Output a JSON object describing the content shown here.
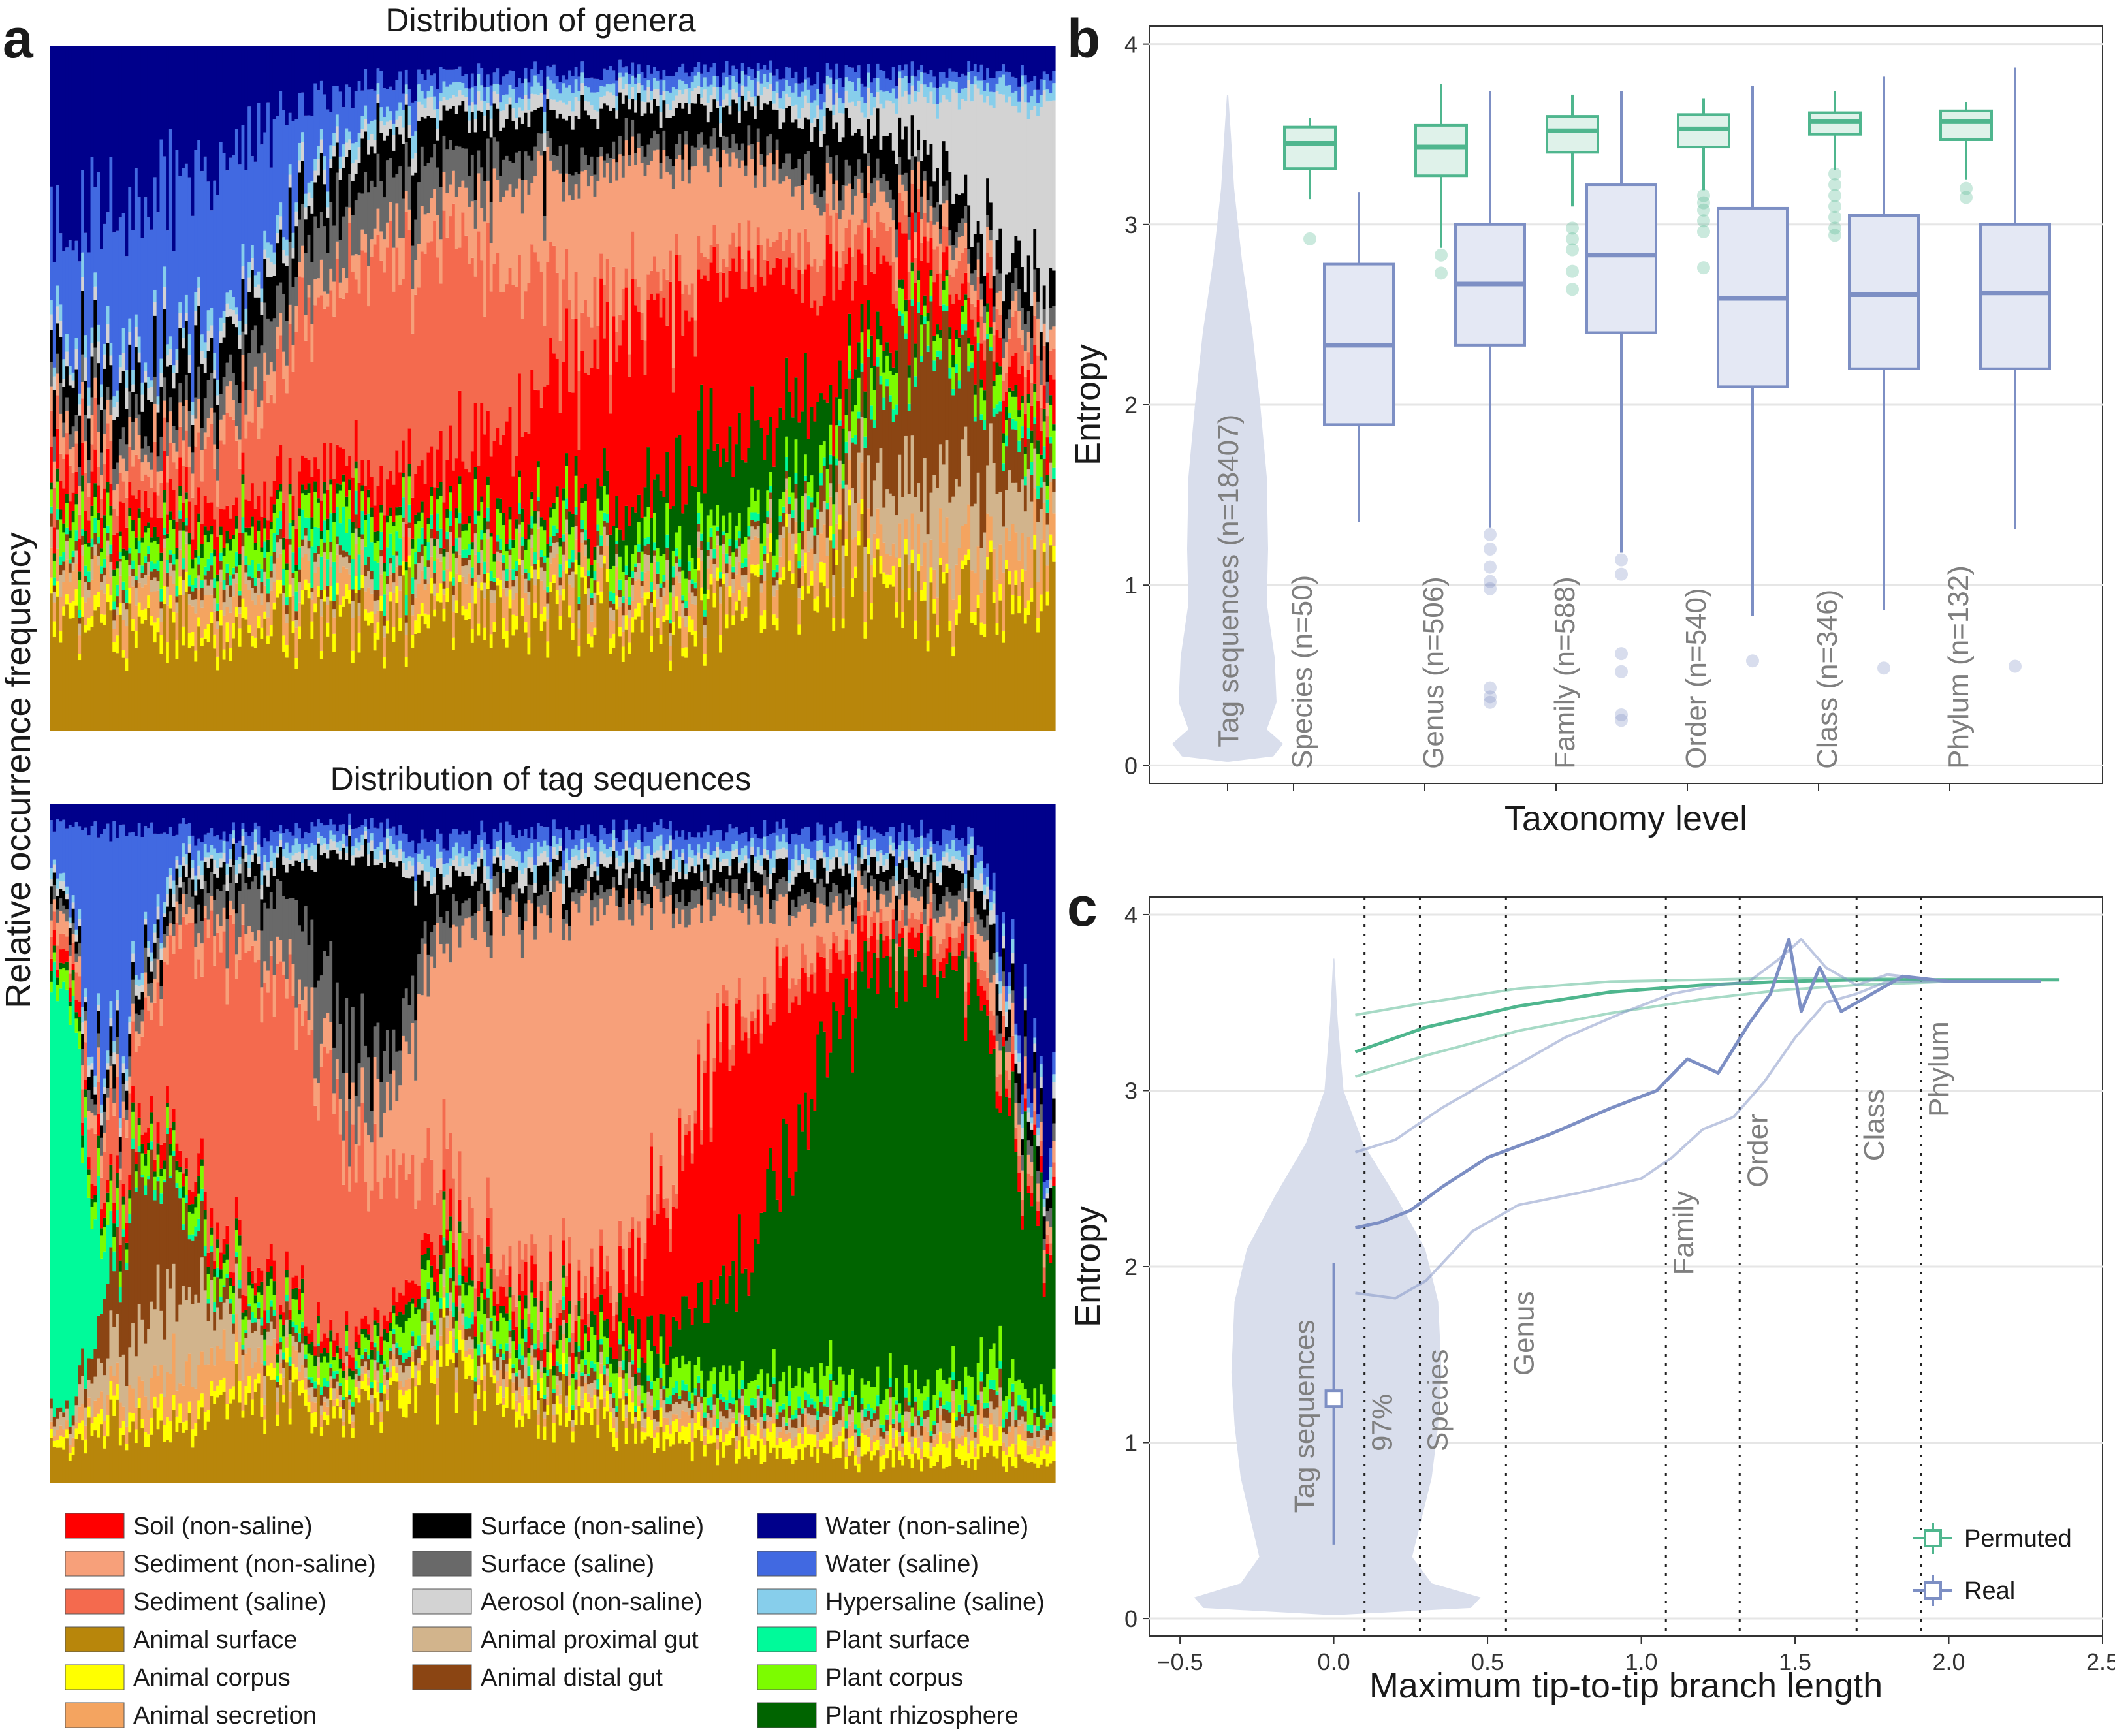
{
  "panel_labels": [
    "a",
    "b",
    "c"
  ],
  "chart_data": [
    {
      "id": "a-top",
      "type": "bar",
      "stacked": true,
      "title": "Distribution of genera",
      "ylabel": "Relative occurrence frequency",
      "description_values": "Each column is one genus; columns sorted; stacked fractions of environment types summing to 1"
    },
    {
      "id": "a-bottom",
      "type": "bar",
      "stacked": true,
      "title": "Distribution of tag sequences",
      "ylabel": "Relative occurrence frequency"
    },
    {
      "id": "b",
      "type": "box",
      "xlabel": "Taxonomy level",
      "ylabel": "Entropy",
      "ylim": [
        -0.1,
        4.1
      ],
      "yticks": [
        0,
        1,
        2,
        3,
        4
      ],
      "violin": {
        "label": "Tag sequences (n=18407)",
        "min": 0.02,
        "max": 3.72
      },
      "groups": [
        {
          "label": "Species (n=50)",
          "permuted": {
            "q1": 3.31,
            "median": 3.45,
            "q3": 3.54,
            "lo": 3.14,
            "hi": 3.59,
            "out": [
              2.92
            ]
          },
          "real": {
            "q1": 1.89,
            "median": 2.33,
            "q3": 2.78,
            "lo": 1.35,
            "hi": 3.18,
            "out": []
          }
        },
        {
          "label": "Genus (n=506)",
          "permuted": {
            "q1": 3.27,
            "median": 3.43,
            "q3": 3.55,
            "lo": 2.87,
            "hi": 3.78,
            "out": [
              2.83,
              2.73
            ]
          },
          "real": {
            "q1": 2.33,
            "median": 2.67,
            "q3": 3.0,
            "lo": 1.32,
            "hi": 3.74,
            "out": [
              1.28,
              1.2,
              1.1,
              1.02,
              0.98,
              0.43,
              0.38,
              0.35
            ]
          }
        },
        {
          "label": "Family (n=588)",
          "permuted": {
            "q1": 3.4,
            "median": 3.52,
            "q3": 3.6,
            "lo": 3.1,
            "hi": 3.72,
            "out": [
              2.98,
              2.92,
              2.86,
              2.74,
              2.64
            ]
          },
          "real": {
            "q1": 2.4,
            "median": 2.83,
            "q3": 3.22,
            "lo": 1.18,
            "hi": 3.74,
            "out": [
              1.14,
              1.06,
              0.62,
              0.52,
              0.28,
              0.25
            ]
          }
        },
        {
          "label": "Order (n=540)",
          "permuted": {
            "q1": 3.43,
            "median": 3.53,
            "q3": 3.61,
            "lo": 3.19,
            "hi": 3.7,
            "out": [
              3.16,
              3.12,
              3.08,
              3.02,
              2.96,
              2.76
            ]
          },
          "real": {
            "q1": 2.1,
            "median": 2.59,
            "q3": 3.09,
            "lo": 0.83,
            "hi": 3.77,
            "out": [
              0.58
            ]
          }
        },
        {
          "label": "Class (n=346)",
          "permuted": {
            "q1": 3.5,
            "median": 3.57,
            "q3": 3.62,
            "lo": 3.3,
            "hi": 3.74,
            "out": [
              3.28,
              3.22,
              3.16,
              3.1,
              3.04,
              2.98,
              2.94
            ]
          },
          "real": {
            "q1": 2.2,
            "median": 2.61,
            "q3": 3.05,
            "lo": 0.86,
            "hi": 3.82,
            "out": [
              0.54
            ]
          }
        },
        {
          "label": "Phylum (n=132)",
          "permuted": {
            "q1": 3.47,
            "median": 3.57,
            "q3": 3.63,
            "lo": 3.25,
            "hi": 3.68,
            "out": [
              3.2,
              3.15
            ]
          },
          "real": {
            "q1": 2.2,
            "median": 2.62,
            "q3": 3.0,
            "lo": 1.31,
            "hi": 3.87,
            "out": [
              0.55
            ]
          }
        }
      ]
    },
    {
      "id": "c",
      "type": "line",
      "xlabel": "Maximum tip-to-tip branch length",
      "ylabel": "Entropy",
      "xlim": [
        -0.6,
        2.5
      ],
      "ylim": [
        -0.1,
        4.1
      ],
      "xticks": [
        -0.5,
        0.0,
        0.5,
        1.0,
        1.5,
        2.0,
        2.5
      ],
      "xtick_labels": [
        "−0.5",
        "0.0",
        "0.5",
        "1.0",
        "1.5",
        "2.0",
        "2.5"
      ],
      "yticks": [
        0,
        1,
        2,
        3,
        4
      ],
      "violin_label": "Tag sequences",
      "point": {
        "x": 0.0,
        "y": 1.25,
        "lo": 0.42,
        "hi": 2.02
      },
      "vlines": [
        {
          "x": 0.1,
          "label": "97%"
        },
        {
          "x": 0.28,
          "label": "Species"
        },
        {
          "x": 0.56,
          "label": "Genus"
        },
        {
          "x": 1.08,
          "label": "Family"
        },
        {
          "x": 1.32,
          "label": "Order"
        },
        {
          "x": 1.7,
          "label": "Class"
        },
        {
          "x": 1.91,
          "label": "Phylum"
        }
      ],
      "series": [
        {
          "name": "Permuted",
          "kind": "median",
          "x": [
            0.07,
            0.3,
            0.6,
            0.9,
            1.2,
            1.45,
            1.7,
            2.0,
            2.36
          ],
          "y": [
            3.22,
            3.36,
            3.48,
            3.56,
            3.6,
            3.62,
            3.63,
            3.63,
            3.63
          ]
        },
        {
          "kind": "upper",
          "x": [
            0.07,
            0.3,
            0.6,
            0.9,
            1.2,
            1.45,
            1.7,
            2.0
          ],
          "y": [
            3.43,
            3.5,
            3.58,
            3.62,
            3.63,
            3.64,
            3.64,
            3.63
          ]
        },
        {
          "kind": "lower",
          "x": [
            0.07,
            0.3,
            0.6,
            0.9,
            1.2,
            1.45,
            1.7,
            2.0
          ],
          "y": [
            3.08,
            3.2,
            3.34,
            3.44,
            3.52,
            3.57,
            3.6,
            3.62
          ]
        },
        {
          "name": "Real",
          "kind": "median",
          "x": [
            0.07,
            0.15,
            0.25,
            0.35,
            0.5,
            0.7,
            0.9,
            1.05,
            1.15,
            1.25,
            1.35,
            1.42,
            1.48,
            1.52,
            1.58,
            1.65,
            1.75,
            1.85,
            2.0,
            2.3
          ],
          "y": [
            2.22,
            2.25,
            2.32,
            2.45,
            2.62,
            2.75,
            2.9,
            3.0,
            3.18,
            3.1,
            3.38,
            3.55,
            3.86,
            3.45,
            3.7,
            3.45,
            3.55,
            3.65,
            3.62,
            3.62
          ]
        },
        {
          "kind": "upper",
          "x": [
            0.07,
            0.2,
            0.35,
            0.55,
            0.75,
            0.95,
            1.1,
            1.25,
            1.35,
            1.45,
            1.52,
            1.6,
            1.7,
            1.8,
            2.0
          ],
          "y": [
            2.65,
            2.72,
            2.9,
            3.1,
            3.3,
            3.45,
            3.55,
            3.6,
            3.62,
            3.75,
            3.86,
            3.7,
            3.6,
            3.66,
            3.62
          ]
        },
        {
          "kind": "lower",
          "x": [
            0.07,
            0.2,
            0.3,
            0.45,
            0.6,
            0.8,
            1.0,
            1.1,
            1.2,
            1.3,
            1.4,
            1.5,
            1.6,
            1.7,
            1.8,
            2.0
          ],
          "y": [
            1.85,
            1.82,
            1.92,
            2.2,
            2.35,
            2.42,
            2.5,
            2.62,
            2.78,
            2.85,
            3.05,
            3.3,
            3.5,
            3.55,
            3.62,
            3.62
          ]
        }
      ],
      "legend": [
        {
          "label": "Permuted",
          "color": "#4fb68e"
        },
        {
          "label": "Real",
          "color": "#7d8fc4"
        }
      ]
    }
  ],
  "legend_a": [
    {
      "label": "Soil (non-saline)",
      "color": "#ff0000"
    },
    {
      "label": "Sediment (non-saline)",
      "color": "#f7a07a"
    },
    {
      "label": "Sediment (saline)",
      "color": "#f46a4e"
    },
    {
      "label": "Animal surface",
      "color": "#b8860b"
    },
    {
      "label": "Animal corpus",
      "color": "#ffff00"
    },
    {
      "label": "Animal secretion",
      "color": "#f4a460"
    },
    {
      "label": "Surface (non-saline)",
      "color": "#000000"
    },
    {
      "label": "Surface (saline)",
      "color": "#696969"
    },
    {
      "label": "Aerosol (non-saline)",
      "color": "#d3d3d3"
    },
    {
      "label": "Animal proximal gut",
      "color": "#d2b48c"
    },
    {
      "label": "Animal distal gut",
      "color": "#8b4513"
    },
    {
      "label": "Water (non-saline)",
      "color": "#00008b"
    },
    {
      "label": "Water (saline)",
      "color": "#4169e1"
    },
    {
      "label": "Hypersaline (saline)",
      "color": "#87ceeb"
    },
    {
      "label": "Plant surface",
      "color": "#00fa9a"
    },
    {
      "label": "Plant corpus",
      "color": "#7cfc00"
    },
    {
      "label": "Plant rhizosphere",
      "color": "#006400"
    }
  ],
  "colors": {
    "permuted": "#4fb68e",
    "real": "#7d8fc4",
    "violin": "#d9deec",
    "grid": "#e6e6e6"
  }
}
